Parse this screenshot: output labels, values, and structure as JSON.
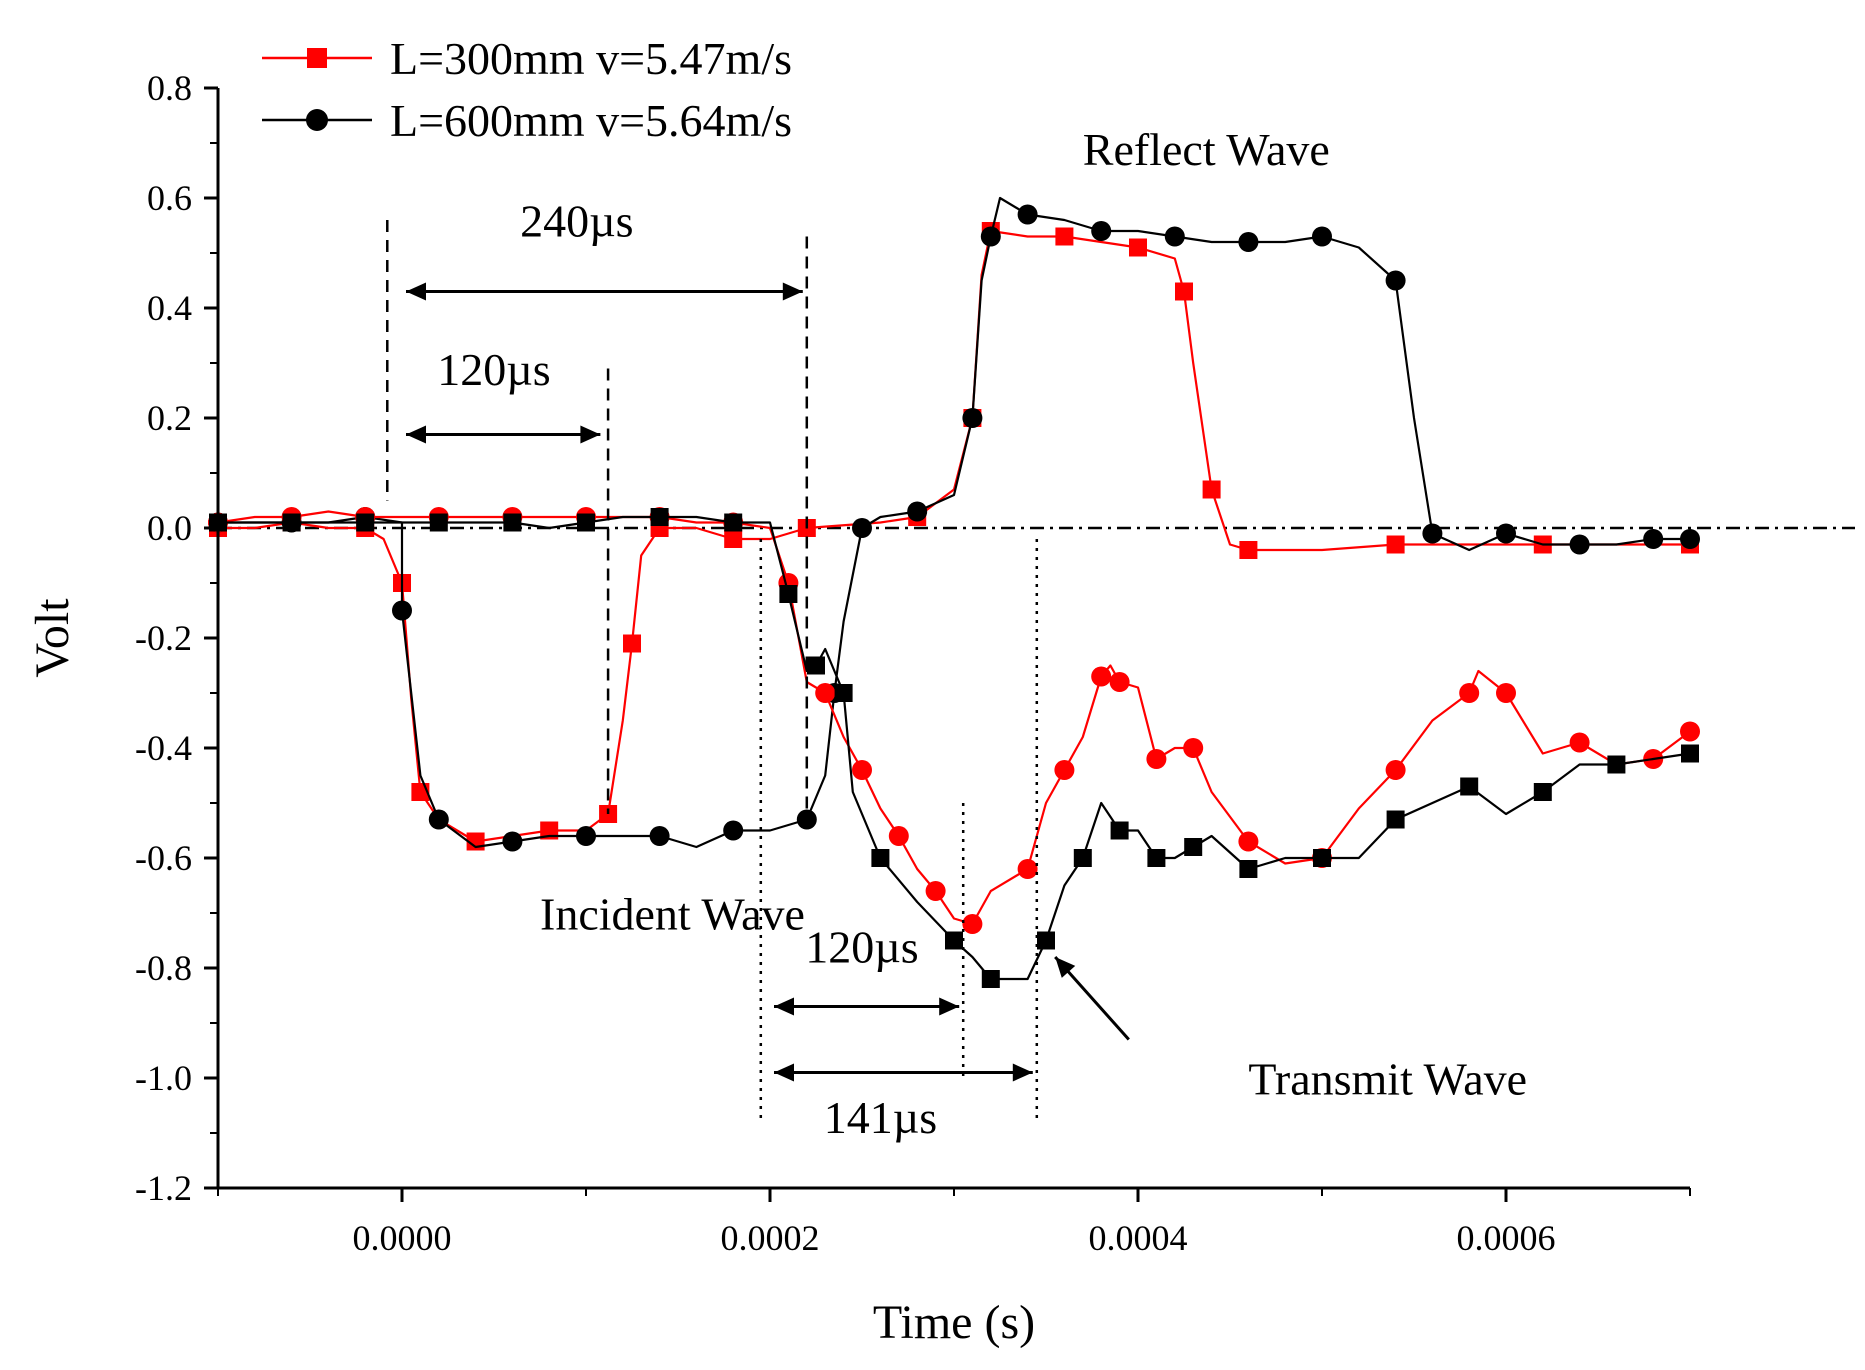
{
  "chart_data": {
    "type": "line",
    "xlabel": "Time (s)",
    "ylabel": "Volt",
    "xlim": [
      -0.0001,
      0.0007
    ],
    "ylim": [
      -1.2,
      0.8
    ],
    "x_ticks": [
      0.0,
      0.0002,
      0.0004,
      0.0006
    ],
    "x_tick_labels": [
      "0.0000",
      "0.0002",
      "0.0004",
      "0.0006"
    ],
    "y_ticks": [
      0.8,
      0.6,
      0.4,
      0.2,
      0.0,
      -0.2,
      -0.4,
      -0.6,
      -0.8,
      -1.0,
      -1.2
    ],
    "y_tick_labels": [
      "0.8",
      "0.6",
      "0.4",
      "0.2",
      "0.0",
      "-0.2",
      "-0.4",
      "-0.6",
      "-0.8",
      "-1.0",
      "-1.2"
    ],
    "grid": false,
    "legend_position": "top-left",
    "legend": [
      {
        "label": "L=300mm v=5.47m/s",
        "color": "#ff0000",
        "marker": "square"
      },
      {
        "label": "L=600mm v=5.64m/s",
        "color": "#000000",
        "marker": "circle"
      }
    ],
    "series": [
      {
        "name": "L=300mm v=5.47m/s",
        "role": "incident-reflect",
        "color": "#ff0000",
        "marker": "square",
        "points": [
          [
            -0.0001,
            0.0
          ],
          [
            -8e-05,
            0.0
          ],
          [
            -6e-05,
            0.01
          ],
          [
            -4e-05,
            0.0
          ],
          [
            -2e-05,
            0.0
          ],
          [
            -1e-05,
            -0.02
          ],
          [
            0.0,
            -0.1
          ],
          [
            5e-06,
            -0.31
          ],
          [
            1e-05,
            -0.48
          ],
          [
            2e-05,
            -0.53
          ],
          [
            4e-05,
            -0.57
          ],
          [
            6e-05,
            -0.56
          ],
          [
            8e-05,
            -0.55
          ],
          [
            0.0001,
            -0.55
          ],
          [
            0.000112,
            -0.52
          ],
          [
            0.00012,
            -0.35
          ],
          [
            0.000125,
            -0.21
          ],
          [
            0.00013,
            -0.05
          ],
          [
            0.00014,
            0.0
          ],
          [
            0.00016,
            0.0
          ],
          [
            0.00018,
            -0.02
          ],
          [
            0.0002,
            -0.02
          ],
          [
            0.00022,
            0.0
          ],
          [
            0.00026,
            0.01
          ],
          [
            0.00028,
            0.02
          ],
          [
            0.0003,
            0.07
          ],
          [
            0.00031,
            0.2
          ],
          [
            0.000315,
            0.46
          ],
          [
            0.00032,
            0.54
          ],
          [
            0.00034,
            0.53
          ],
          [
            0.00036,
            0.53
          ],
          [
            0.00038,
            0.52
          ],
          [
            0.0004,
            0.51
          ],
          [
            0.00042,
            0.49
          ],
          [
            0.000425,
            0.43
          ],
          [
            0.00043,
            0.3
          ],
          [
            0.00044,
            0.07
          ],
          [
            0.00045,
            -0.03
          ],
          [
            0.00046,
            -0.04
          ],
          [
            0.0005,
            -0.04
          ],
          [
            0.00054,
            -0.03
          ],
          [
            0.00058,
            -0.03
          ],
          [
            0.00062,
            -0.03
          ],
          [
            0.00066,
            -0.03
          ],
          [
            0.0007,
            -0.03
          ]
        ]
      },
      {
        "name": "L=600mm v=5.64m/s",
        "role": "incident-reflect",
        "color": "#000000",
        "marker": "circle",
        "points": [
          [
            -0.0001,
            0.01
          ],
          [
            -8e-05,
            0.01
          ],
          [
            -6e-05,
            0.01
          ],
          [
            -4e-05,
            0.01
          ],
          [
            -2e-05,
            0.02
          ],
          [
            0.0,
            0.01
          ],
          [
            0.0,
            -0.15
          ],
          [
            1e-05,
            -0.45
          ],
          [
            2e-05,
            -0.53
          ],
          [
            4e-05,
            -0.58
          ],
          [
            6e-05,
            -0.57
          ],
          [
            8e-05,
            -0.56
          ],
          [
            0.0001,
            -0.56
          ],
          [
            0.00012,
            -0.56
          ],
          [
            0.00014,
            -0.56
          ],
          [
            0.00016,
            -0.58
          ],
          [
            0.00018,
            -0.55
          ],
          [
            0.0002,
            -0.55
          ],
          [
            0.00022,
            -0.53
          ],
          [
            0.00023,
            -0.45
          ],
          [
            0.000235,
            -0.3
          ],
          [
            0.00024,
            -0.17
          ],
          [
            0.00025,
            0.0
          ],
          [
            0.00026,
            0.02
          ],
          [
            0.00028,
            0.03
          ],
          [
            0.0003,
            0.06
          ],
          [
            0.00031,
            0.2
          ],
          [
            0.000315,
            0.45
          ],
          [
            0.00032,
            0.53
          ],
          [
            0.000325,
            0.6
          ],
          [
            0.00034,
            0.57
          ],
          [
            0.00036,
            0.56
          ],
          [
            0.00038,
            0.54
          ],
          [
            0.0004,
            0.54
          ],
          [
            0.00042,
            0.53
          ],
          [
            0.00044,
            0.52
          ],
          [
            0.00046,
            0.52
          ],
          [
            0.00048,
            0.52
          ],
          [
            0.0005,
            0.53
          ],
          [
            0.00052,
            0.51
          ],
          [
            0.00054,
            0.45
          ],
          [
            0.00055,
            0.2
          ],
          [
            0.00056,
            -0.01
          ],
          [
            0.00058,
            -0.04
          ],
          [
            0.0006,
            -0.01
          ],
          [
            0.00062,
            -0.03
          ],
          [
            0.00064,
            -0.03
          ],
          [
            0.00066,
            -0.03
          ],
          [
            0.00068,
            -0.02
          ],
          [
            0.0007,
            -0.02
          ]
        ]
      },
      {
        "name": "L=300mm v=5.47m/s",
        "role": "transmit",
        "color": "#ff0000",
        "marker": "circle",
        "points": [
          [
            -0.0001,
            0.01
          ],
          [
            -8e-05,
            0.02
          ],
          [
            -6e-05,
            0.02
          ],
          [
            -4e-05,
            0.03
          ],
          [
            -2e-05,
            0.02
          ],
          [
            0.0,
            0.02
          ],
          [
            2e-05,
            0.02
          ],
          [
            4e-05,
            0.02
          ],
          [
            6e-05,
            0.02
          ],
          [
            8e-05,
            0.02
          ],
          [
            0.0001,
            0.02
          ],
          [
            0.00012,
            0.02
          ],
          [
            0.00014,
            0.02
          ],
          [
            0.00016,
            0.01
          ],
          [
            0.00018,
            0.01
          ],
          [
            0.0002,
            0.0
          ],
          [
            0.00021,
            -0.1
          ],
          [
            0.00022,
            -0.28
          ],
          [
            0.00023,
            -0.3
          ],
          [
            0.00024,
            -0.38
          ],
          [
            0.00025,
            -0.44
          ],
          [
            0.00026,
            -0.51
          ],
          [
            0.00027,
            -0.56
          ],
          [
            0.00028,
            -0.62
          ],
          [
            0.00029,
            -0.66
          ],
          [
            0.0003,
            -0.71
          ],
          [
            0.00031,
            -0.72
          ],
          [
            0.00032,
            -0.66
          ],
          [
            0.00034,
            -0.62
          ],
          [
            0.00035,
            -0.5
          ],
          [
            0.00036,
            -0.44
          ],
          [
            0.00037,
            -0.38
          ],
          [
            0.00038,
            -0.27
          ],
          [
            0.000385,
            -0.25
          ],
          [
            0.00039,
            -0.28
          ],
          [
            0.0004,
            -0.29
          ],
          [
            0.00041,
            -0.42
          ],
          [
            0.00042,
            -0.4
          ],
          [
            0.00043,
            -0.4
          ],
          [
            0.00044,
            -0.48
          ],
          [
            0.00046,
            -0.57
          ],
          [
            0.00048,
            -0.61
          ],
          [
            0.0005,
            -0.6
          ],
          [
            0.00052,
            -0.51
          ],
          [
            0.00054,
            -0.44
          ],
          [
            0.00056,
            -0.35
          ],
          [
            0.00058,
            -0.3
          ],
          [
            0.000585,
            -0.26
          ],
          [
            0.0006,
            -0.3
          ],
          [
            0.00062,
            -0.41
          ],
          [
            0.00064,
            -0.39
          ],
          [
            0.00066,
            -0.43
          ],
          [
            0.00068,
            -0.42
          ],
          [
            0.0007,
            -0.37
          ]
        ]
      },
      {
        "name": "L=600mm v=5.64m/s",
        "role": "transmit",
        "color": "#000000",
        "marker": "square",
        "points": [
          [
            -0.0001,
            0.01
          ],
          [
            -8e-05,
            0.01
          ],
          [
            -6e-05,
            0.01
          ],
          [
            -4e-05,
            0.01
          ],
          [
            -2e-05,
            0.01
          ],
          [
            0.0,
            0.01
          ],
          [
            2e-05,
            0.01
          ],
          [
            4e-05,
            0.01
          ],
          [
            6e-05,
            0.01
          ],
          [
            8e-05,
            0.0
          ],
          [
            0.0001,
            0.01
          ],
          [
            0.00012,
            0.02
          ],
          [
            0.00014,
            0.02
          ],
          [
            0.00016,
            0.02
          ],
          [
            0.00018,
            0.01
          ],
          [
            0.0002,
            0.01
          ],
          [
            0.00021,
            -0.12
          ],
          [
            0.00022,
            -0.26
          ],
          [
            0.000225,
            -0.25
          ],
          [
            0.00023,
            -0.22
          ],
          [
            0.00024,
            -0.3
          ],
          [
            0.000245,
            -0.48
          ],
          [
            0.00026,
            -0.6
          ],
          [
            0.00028,
            -0.68
          ],
          [
            0.0003,
            -0.75
          ],
          [
            0.00031,
            -0.78
          ],
          [
            0.00032,
            -0.82
          ],
          [
            0.00034,
            -0.82
          ],
          [
            0.00035,
            -0.75
          ],
          [
            0.00036,
            -0.65
          ],
          [
            0.00037,
            -0.6
          ],
          [
            0.00038,
            -0.5
          ],
          [
            0.00039,
            -0.55
          ],
          [
            0.0004,
            -0.55
          ],
          [
            0.00041,
            -0.6
          ],
          [
            0.00042,
            -0.6
          ],
          [
            0.00043,
            -0.58
          ],
          [
            0.00044,
            -0.56
          ],
          [
            0.00046,
            -0.62
          ],
          [
            0.00048,
            -0.6
          ],
          [
            0.0005,
            -0.6
          ],
          [
            0.00052,
            -0.6
          ],
          [
            0.00054,
            -0.53
          ],
          [
            0.00056,
            -0.5
          ],
          [
            0.00058,
            -0.47
          ],
          [
            0.0006,
            -0.52
          ],
          [
            0.00062,
            -0.48
          ],
          [
            0.00064,
            -0.43
          ],
          [
            0.00066,
            -0.43
          ],
          [
            0.00068,
            -0.42
          ],
          [
            0.0007,
            -0.41
          ]
        ]
      }
    ],
    "reference_line": {
      "y": 0.0,
      "style": "dash-dot",
      "color": "#000000"
    },
    "annotations": {
      "reflect_wave": {
        "text": "Reflect Wave",
        "x": 0.00037,
        "y": 0.66
      },
      "incident_wave": {
        "text": "Incident Wave",
        "x": 7.5e-05,
        "y": -0.73
      },
      "transmit_wave": {
        "text": "Transmit Wave",
        "x": 0.00046,
        "y": -1.03
      },
      "transmit_arrow": {
        "from": [
          0.000395,
          -0.93
        ],
        "to": [
          0.000355,
          -0.78
        ]
      },
      "intervals": [
        {
          "text": "240µs",
          "x1": 0.0,
          "x2": 0.00022,
          "y": 0.43,
          "label_x": 9.5e-05,
          "label_y": 0.53
        },
        {
          "text": "120µs",
          "x1": 0.0,
          "x2": 0.00011,
          "y": 0.17,
          "label_x": 5e-05,
          "label_y": 0.26
        },
        {
          "text": "120µs",
          "x1": 0.0002,
          "x2": 0.000305,
          "y": -0.87,
          "label_x": 0.00025,
          "label_y": -0.79
        },
        {
          "text": "141µs",
          "x1": 0.0002,
          "x2": 0.000345,
          "y": -0.99,
          "label_x": 0.00026,
          "label_y": -1.1
        }
      ],
      "dashed_markers": [
        {
          "x": -8e-06,
          "y_top": 0.56,
          "y_bottom": 0.05
        },
        {
          "x": 0.00022,
          "y_top": 0.53,
          "y_bottom": -0.52
        },
        {
          "x": 0.000112,
          "y_top": 0.29,
          "y_bottom": -0.52
        }
      ],
      "dotted_markers": [
        {
          "x": 0.000195,
          "y_top": -0.02,
          "y_bottom": -1.08
        },
        {
          "x": 0.000305,
          "y_top": -0.5,
          "y_bottom": -1.0
        },
        {
          "x": 0.000345,
          "y_top": -0.02,
          "y_bottom": -1.08
        }
      ]
    }
  }
}
